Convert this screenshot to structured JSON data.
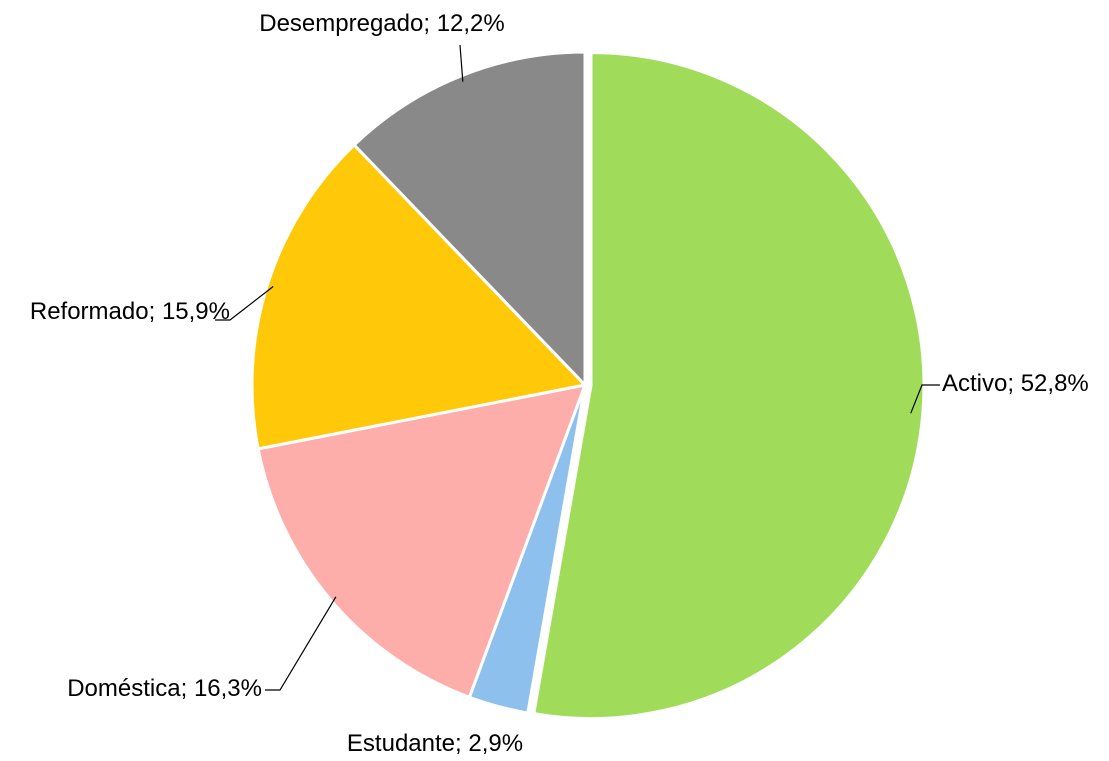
{
  "chart_data": {
    "type": "pie",
    "categories": [
      "Activo",
      "Estudante",
      "Doméstica",
      "Reformado",
      "Desempregado"
    ],
    "values": [
      52.8,
      2.9,
      16.3,
      15.9,
      12.2
    ],
    "value_labels": [
      "52,8%",
      "2,9%",
      "16,3%",
      "15,9%",
      "12,2%"
    ],
    "label_separator": "; ",
    "colors": [
      "#a0dc5a",
      "#8ec0ee",
      "#fdaeaa",
      "#ffc90a",
      "#898989"
    ]
  }
}
